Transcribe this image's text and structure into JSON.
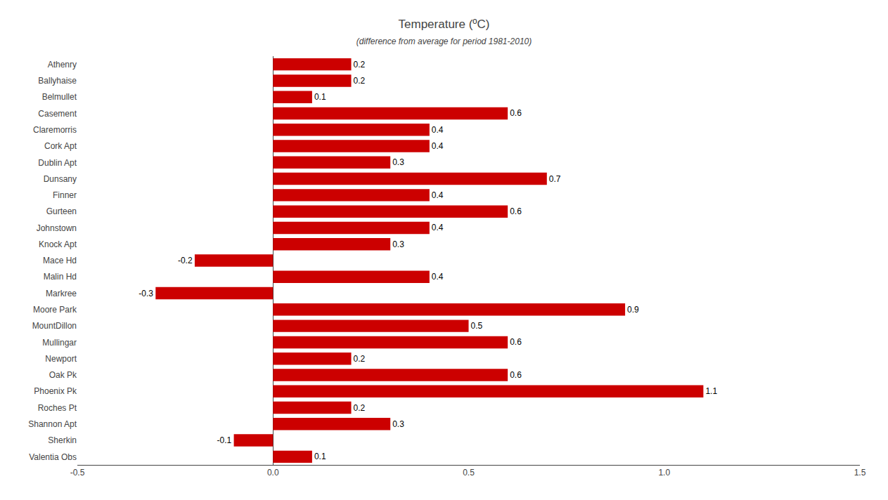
{
  "chart_data": {
    "type": "bar",
    "orientation": "horizontal",
    "title": "Temperature (ºC)",
    "subtitle": "(difference from average for period 1981-2010)",
    "categories": [
      "Athenry",
      "Ballyhaise",
      "Belmullet",
      "Casement",
      "Claremorris",
      "Cork Apt",
      "Dublin Apt",
      "Dunsany",
      "Finner",
      "Gurteen",
      "Johnstown",
      "Knock Apt",
      "Mace Hd",
      "Malin Hd",
      "Markree",
      "Moore Park",
      "MountDillon",
      "Mullingar",
      "Newport",
      "Oak Pk",
      "Phoenix Pk",
      "Roches Pt",
      "Shannon Apt",
      "Sherkin",
      "Valentia Obs"
    ],
    "values": [
      0.2,
      0.2,
      0.1,
      0.6,
      0.4,
      0.4,
      0.3,
      0.7,
      0.4,
      0.6,
      0.4,
      0.3,
      -0.2,
      0.4,
      -0.3,
      0.9,
      0.5,
      0.6,
      0.2,
      0.6,
      1.1,
      0.2,
      0.3,
      -0.1,
      0.1
    ],
    "color": "#cc0000",
    "xlim": [
      -0.5,
      1.5
    ],
    "xticks": [
      -0.5,
      {
        "value": 0,
        "label": "0.0"
      },
      0.5,
      {
        "value": 1,
        "label": "1.0"
      },
      1.5
    ],
    "grid": false,
    "data_labels": true
  }
}
